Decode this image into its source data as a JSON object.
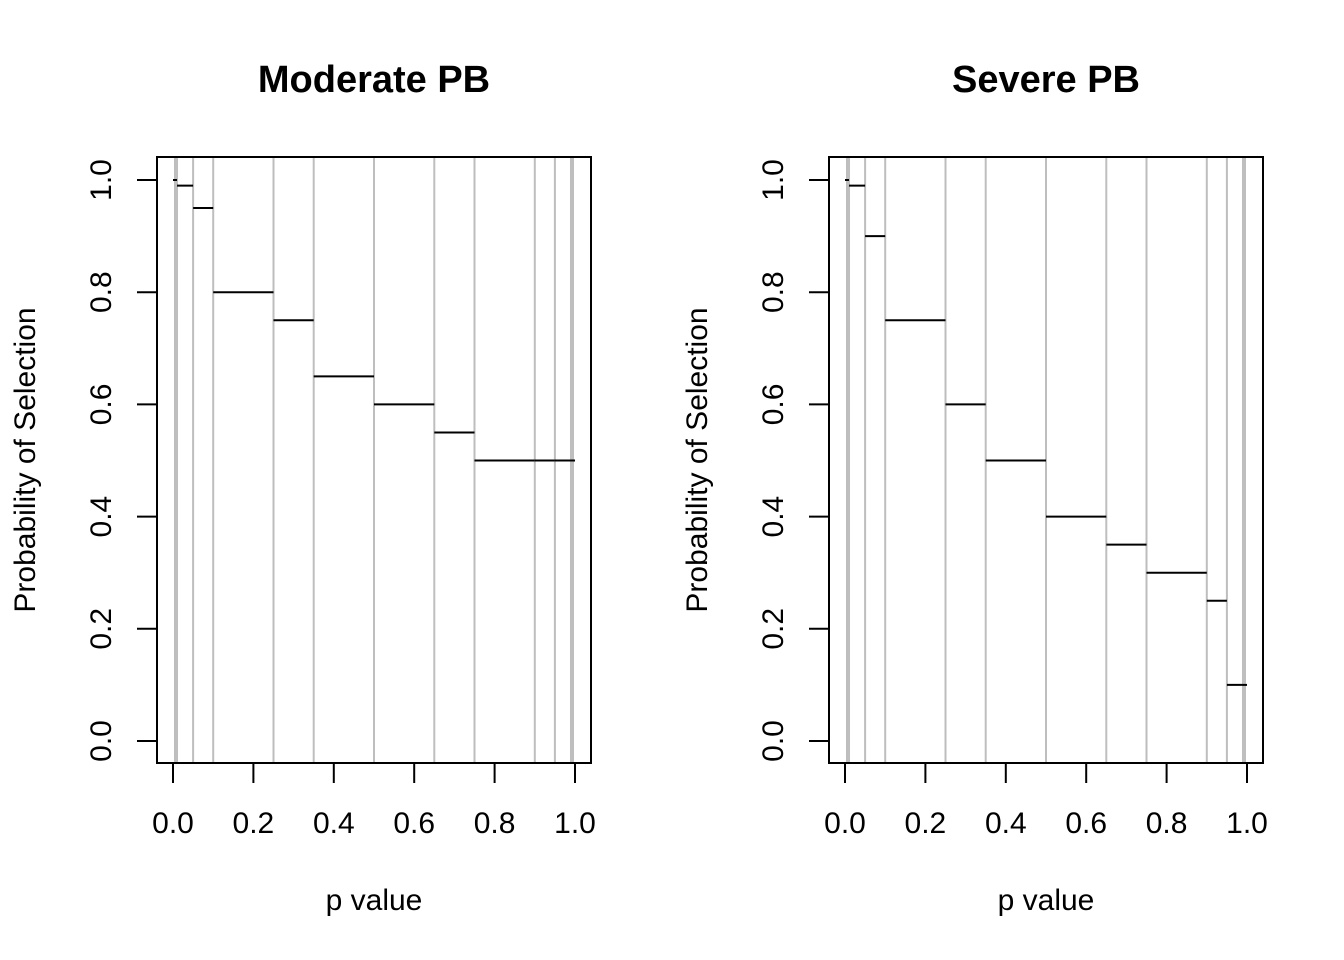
{
  "colors": {
    "step_line": "#000000",
    "cutpoint_line": "#bebebe",
    "axes": "#000000",
    "background": "#ffffff"
  },
  "chart_data": [
    {
      "type": "line",
      "title": "Moderate PB",
      "xlabel": "p value",
      "ylabel": "Probability of Selection",
      "xlim": [
        0,
        1
      ],
      "ylim": [
        0,
        1
      ],
      "x_ticks": [
        "0.0",
        "0.2",
        "0.4",
        "0.6",
        "0.8",
        "1.0"
      ],
      "y_ticks": [
        "0.0",
        "0.2",
        "0.4",
        "0.6",
        "0.8",
        "1.0"
      ],
      "cutpoints": [
        0.005,
        0.01,
        0.05,
        0.1,
        0.25,
        0.35,
        0.5,
        0.65,
        0.75,
        0.9,
        0.95,
        0.99,
        0.995
      ],
      "steps": [
        {
          "x0": 0.0,
          "x1": 0.005,
          "y": 1.0
        },
        {
          "x0": 0.005,
          "x1": 0.01,
          "y": 1.0
        },
        {
          "x0": 0.01,
          "x1": 0.05,
          "y": 0.99
        },
        {
          "x0": 0.05,
          "x1": 0.1,
          "y": 0.95
        },
        {
          "x0": 0.1,
          "x1": 0.25,
          "y": 0.8
        },
        {
          "x0": 0.25,
          "x1": 0.35,
          "y": 0.75
        },
        {
          "x0": 0.35,
          "x1": 0.5,
          "y": 0.65
        },
        {
          "x0": 0.5,
          "x1": 0.65,
          "y": 0.6
        },
        {
          "x0": 0.65,
          "x1": 0.75,
          "y": 0.55
        },
        {
          "x0": 0.75,
          "x1": 0.9,
          "y": 0.5
        },
        {
          "x0": 0.9,
          "x1": 0.95,
          "y": 0.5
        },
        {
          "x0": 0.95,
          "x1": 0.99,
          "y": 0.5
        },
        {
          "x0": 0.99,
          "x1": 0.995,
          "y": 0.5
        },
        {
          "x0": 0.995,
          "x1": 1.0,
          "y": 0.5
        }
      ],
      "grid": false
    },
    {
      "type": "line",
      "title": "Severe PB",
      "xlabel": "p value",
      "ylabel": "Probability of Selection",
      "xlim": [
        0,
        1
      ],
      "ylim": [
        0,
        1
      ],
      "x_ticks": [
        "0.0",
        "0.2",
        "0.4",
        "0.6",
        "0.8",
        "1.0"
      ],
      "y_ticks": [
        "0.0",
        "0.2",
        "0.4",
        "0.6",
        "0.8",
        "1.0"
      ],
      "cutpoints": [
        0.005,
        0.01,
        0.05,
        0.1,
        0.25,
        0.35,
        0.5,
        0.65,
        0.75,
        0.9,
        0.95,
        0.99,
        0.995
      ],
      "steps": [
        {
          "x0": 0.0,
          "x1": 0.005,
          "y": 1.0
        },
        {
          "x0": 0.005,
          "x1": 0.01,
          "y": 1.0
        },
        {
          "x0": 0.01,
          "x1": 0.05,
          "y": 0.99
        },
        {
          "x0": 0.05,
          "x1": 0.1,
          "y": 0.9
        },
        {
          "x0": 0.1,
          "x1": 0.25,
          "y": 0.75
        },
        {
          "x0": 0.25,
          "x1": 0.35,
          "y": 0.6
        },
        {
          "x0": 0.35,
          "x1": 0.5,
          "y": 0.5
        },
        {
          "x0": 0.5,
          "x1": 0.65,
          "y": 0.4
        },
        {
          "x0": 0.65,
          "x1": 0.75,
          "y": 0.35
        },
        {
          "x0": 0.75,
          "x1": 0.9,
          "y": 0.3
        },
        {
          "x0": 0.9,
          "x1": 0.95,
          "y": 0.25
        },
        {
          "x0": 0.95,
          "x1": 0.99,
          "y": 0.1
        },
        {
          "x0": 0.99,
          "x1": 0.995,
          "y": 0.1
        },
        {
          "x0": 0.995,
          "x1": 1.0,
          "y": 0.1
        }
      ],
      "grid": false
    }
  ]
}
